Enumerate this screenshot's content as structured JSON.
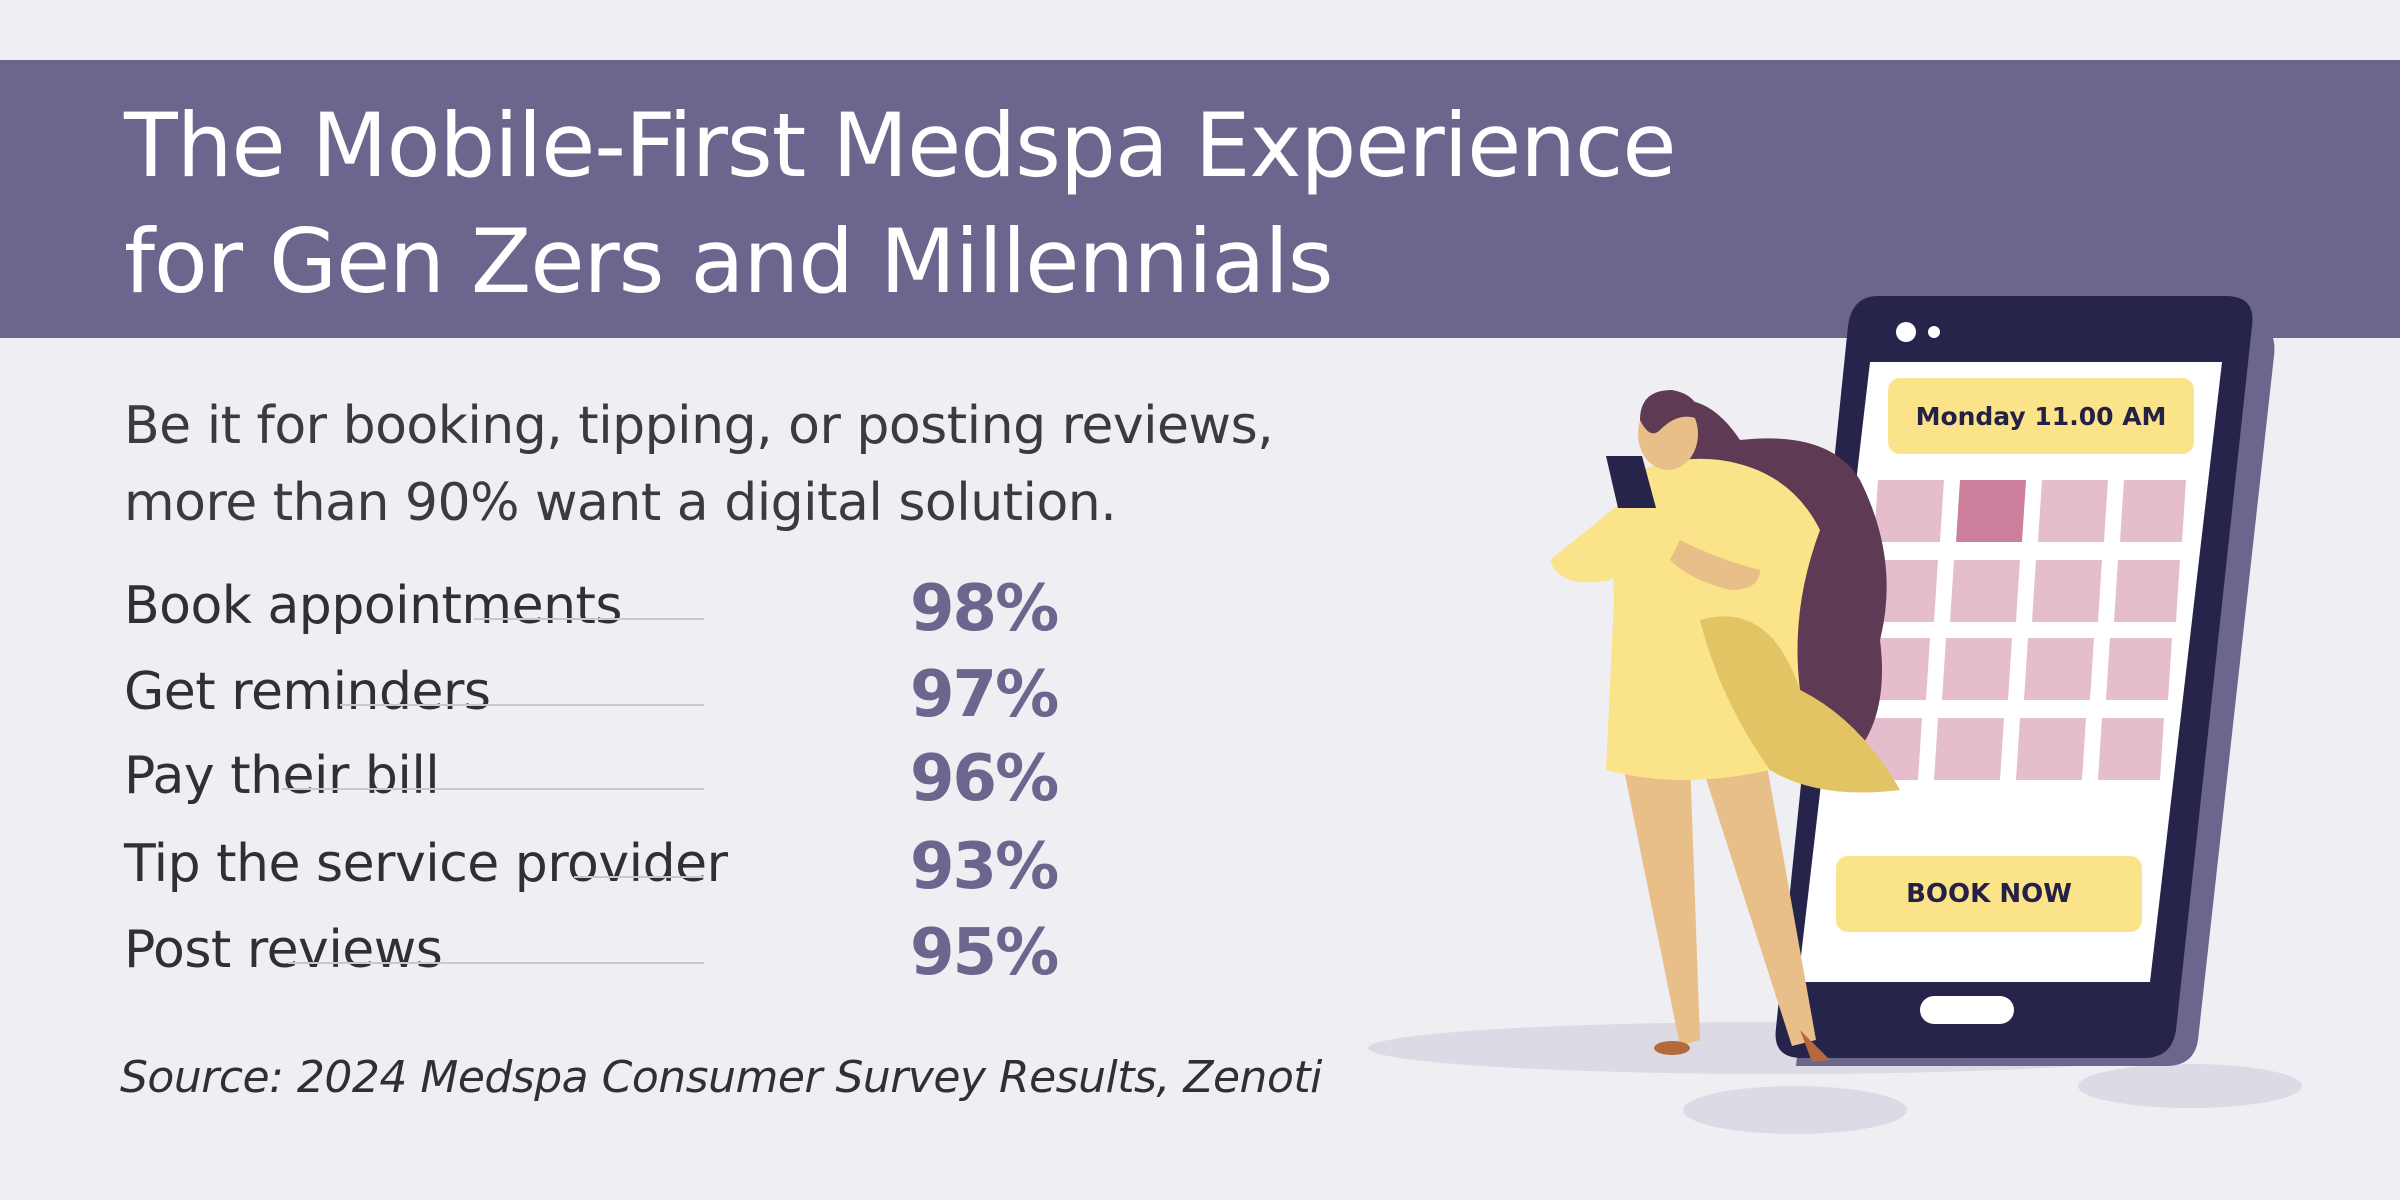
{
  "title": {
    "line1": "The Mobile-First Medspa Experience",
    "line2": "for Gen Zers and Millennials"
  },
  "subtitle": {
    "line1": "Be it for booking, tipping, or posting reviews,",
    "line2": "more than 90% want a digital solution."
  },
  "stats": [
    {
      "label": "Book appointments",
      "value": "98%"
    },
    {
      "label": "Get reminders",
      "value": "97%"
    },
    {
      "label": "Pay their bill",
      "value": "96%"
    },
    {
      "label": "Tip the service provider",
      "value": "93%"
    },
    {
      "label": "Post reviews",
      "value": "95%"
    }
  ],
  "source": "Source: 2024 Medspa Consumer Survey Results, Zenoti",
  "phone": {
    "time_label": "Monday 11.00 AM",
    "book_button": "BOOK NOW"
  },
  "colors": {
    "banner": "#6c668e",
    "accent": "#6c668e",
    "phone_body": "#27244b",
    "calendar_cell": "#e5bdcd",
    "calendar_selected": "#cc7e9c",
    "button_yellow": "#fbe38a"
  }
}
